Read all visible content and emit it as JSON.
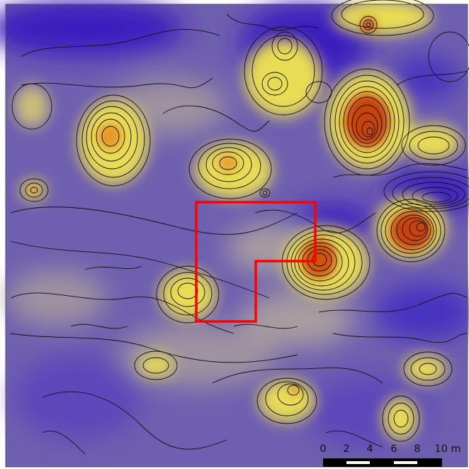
{
  "map": {
    "colors": {
      "low": "#3a1fc0",
      "mid_low": "#6a58b4",
      "mid": "#9e93a0",
      "mid_high": "#e8dc55",
      "high": "#f0c830",
      "peak": "#c23a0c",
      "contour": "#111111",
      "outline": "#ff0000",
      "scale_bar": "#000000"
    },
    "scale_bar": {
      "labels": [
        "0",
        "2",
        "4",
        "6",
        "8",
        "10 m"
      ]
    }
  }
}
